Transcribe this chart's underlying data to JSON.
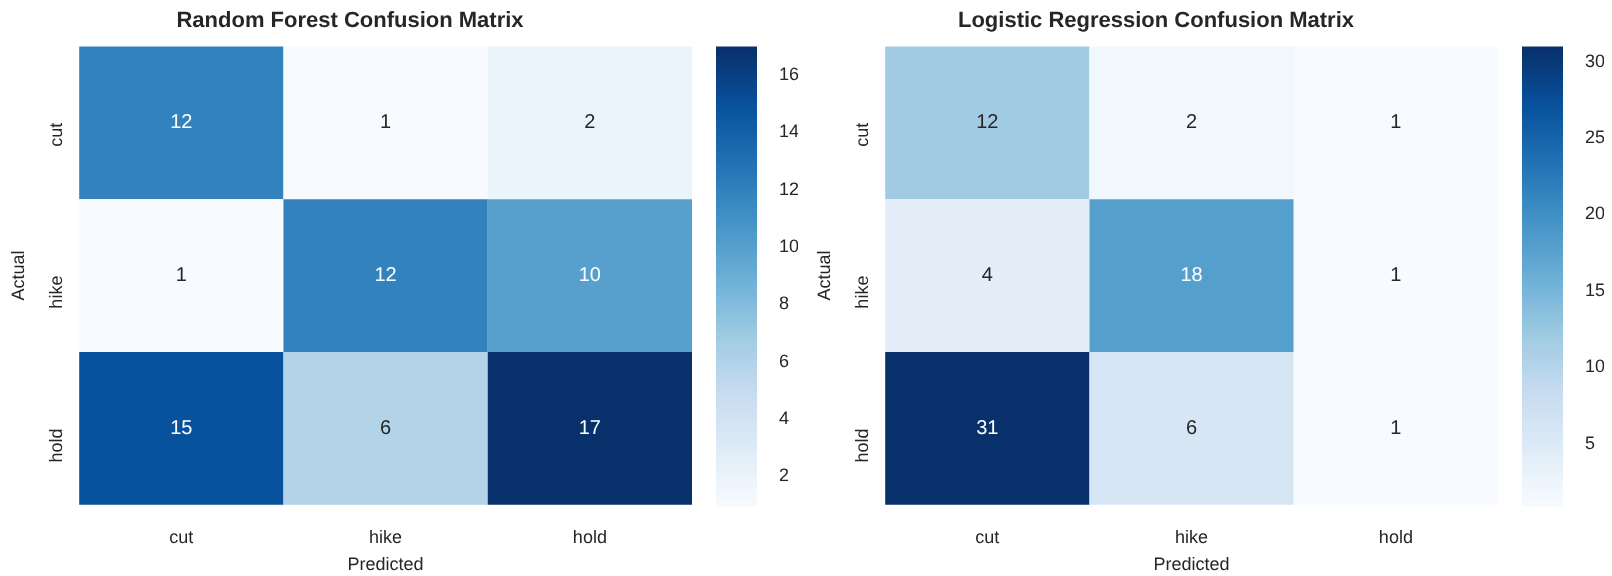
{
  "chart_data": [
    {
      "type": "heatmap",
      "title": "Random Forest Confusion Matrix",
      "xlabel": "Predicted",
      "ylabel": "Actual",
      "categories": [
        "cut",
        "hike",
        "hold"
      ],
      "y_categories": [
        "cut",
        "hike",
        "hold"
      ],
      "cells": [
        [
          12,
          1,
          2
        ],
        [
          1,
          12,
          10
        ],
        [
          15,
          6,
          17
        ]
      ],
      "clim": [
        1,
        17
      ],
      "cticks": [
        2,
        4,
        6,
        8,
        10,
        12,
        14,
        16
      ],
      "data_labels": true
    },
    {
      "type": "heatmap",
      "title": "Logistic Regression Confusion Matrix",
      "xlabel": "Predicted",
      "ylabel": "Actual",
      "categories": [
        "cut",
        "hike",
        "hold"
      ],
      "y_categories": [
        "cut",
        "hike",
        "hold"
      ],
      "cells": [
        [
          12,
          2,
          1
        ],
        [
          4,
          18,
          1
        ],
        [
          31,
          6,
          1
        ]
      ],
      "clim": [
        1,
        31
      ],
      "cticks": [
        5,
        10,
        15,
        20,
        25,
        30
      ],
      "data_labels": true
    }
  ]
}
